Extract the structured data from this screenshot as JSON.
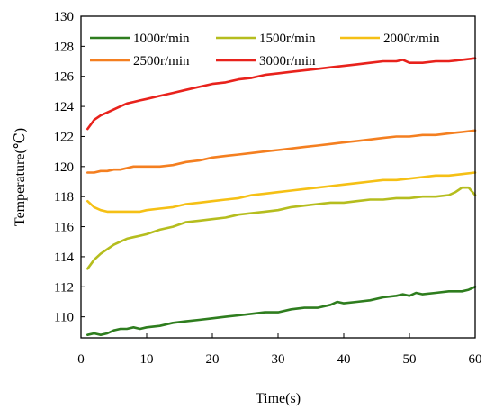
{
  "chart_data": {
    "type": "line",
    "xlabel": "Time(s)",
    "ylabel": "Temperature(℃)",
    "xlim": [
      0,
      60
    ],
    "ylim": [
      108.6,
      130
    ],
    "xticks": [
      0,
      10,
      20,
      30,
      40,
      50,
      60
    ],
    "yticks": [
      110,
      112,
      114,
      116,
      118,
      120,
      122,
      124,
      126,
      128,
      130
    ],
    "grid": false,
    "legend_position": "top, inside plot area (two rows)",
    "series": [
      {
        "name": "1000r/min",
        "color": "#2e7d1e",
        "x": [
          1,
          2,
          3,
          4,
          5,
          6,
          7,
          8,
          9,
          10,
          12,
          14,
          16,
          18,
          20,
          22,
          24,
          26,
          28,
          30,
          32,
          34,
          36,
          38,
          39,
          40,
          42,
          44,
          46,
          48,
          49,
          50,
          51,
          52,
          54,
          56,
          58,
          59,
          60
        ],
        "y": [
          108.8,
          108.9,
          108.8,
          108.9,
          109.1,
          109.2,
          109.2,
          109.3,
          109.2,
          109.3,
          109.4,
          109.6,
          109.7,
          109.8,
          109.9,
          110.0,
          110.1,
          110.2,
          110.3,
          110.3,
          110.5,
          110.6,
          110.6,
          110.8,
          111.0,
          110.9,
          111.0,
          111.1,
          111.3,
          111.4,
          111.5,
          111.4,
          111.6,
          111.5,
          111.6,
          111.7,
          111.7,
          111.8,
          112.0
        ]
      },
      {
        "name": "1500r/min",
        "color": "#b5bd1e",
        "x": [
          1,
          2,
          3,
          4,
          5,
          6,
          7,
          8,
          9,
          10,
          12,
          14,
          16,
          18,
          20,
          22,
          24,
          26,
          28,
          30,
          32,
          34,
          36,
          38,
          40,
          42,
          44,
          46,
          48,
          50,
          52,
          54,
          56,
          57,
          58,
          59,
          60
        ],
        "y": [
          113.2,
          113.8,
          114.2,
          114.5,
          114.8,
          115.0,
          115.2,
          115.3,
          115.4,
          115.5,
          115.8,
          116.0,
          116.3,
          116.4,
          116.5,
          116.6,
          116.8,
          116.9,
          117.0,
          117.1,
          117.3,
          117.4,
          117.5,
          117.6,
          117.6,
          117.7,
          117.8,
          117.8,
          117.9,
          117.9,
          118.0,
          118.0,
          118.1,
          118.3,
          118.6,
          118.6,
          118.1
        ]
      },
      {
        "name": "2000r/min",
        "color": "#f5c015",
        "x": [
          1,
          2,
          3,
          4,
          5,
          6,
          7,
          8,
          9,
          10,
          12,
          14,
          16,
          18,
          20,
          22,
          24,
          26,
          28,
          30,
          32,
          34,
          36,
          38,
          40,
          42,
          44,
          46,
          48,
          50,
          52,
          54,
          56,
          58,
          60
        ],
        "y": [
          117.7,
          117.3,
          117.1,
          117.0,
          117.0,
          117.0,
          117.0,
          117.0,
          117.0,
          117.1,
          117.2,
          117.3,
          117.5,
          117.6,
          117.7,
          117.8,
          117.9,
          118.1,
          118.2,
          118.3,
          118.4,
          118.5,
          118.6,
          118.7,
          118.8,
          118.9,
          119.0,
          119.1,
          119.1,
          119.2,
          119.3,
          119.4,
          119.4,
          119.5,
          119.6
        ]
      },
      {
        "name": "2500r/min",
        "color": "#f47f20",
        "x": [
          1,
          2,
          3,
          4,
          5,
          6,
          7,
          8,
          9,
          10,
          12,
          14,
          16,
          18,
          20,
          22,
          24,
          26,
          28,
          30,
          32,
          34,
          36,
          38,
          40,
          42,
          44,
          46,
          48,
          50,
          52,
          54,
          56,
          58,
          60
        ],
        "y": [
          119.6,
          119.6,
          119.7,
          119.7,
          119.8,
          119.8,
          119.9,
          120.0,
          120.0,
          120.0,
          120.0,
          120.1,
          120.3,
          120.4,
          120.6,
          120.7,
          120.8,
          120.9,
          121.0,
          121.1,
          121.2,
          121.3,
          121.4,
          121.5,
          121.6,
          121.7,
          121.8,
          121.9,
          122.0,
          122.0,
          122.1,
          122.1,
          122.2,
          122.3,
          122.4
        ]
      },
      {
        "name": "3000r/min",
        "color": "#e8221c",
        "x": [
          1,
          2,
          3,
          4,
          5,
          6,
          7,
          8,
          9,
          10,
          12,
          14,
          16,
          18,
          20,
          22,
          24,
          26,
          28,
          30,
          32,
          34,
          36,
          38,
          40,
          42,
          44,
          46,
          48,
          49,
          50,
          51,
          52,
          54,
          56,
          58,
          60
        ],
        "y": [
          122.5,
          123.1,
          123.4,
          123.6,
          123.8,
          124.0,
          124.2,
          124.3,
          124.4,
          124.5,
          124.7,
          124.9,
          125.1,
          125.3,
          125.5,
          125.6,
          125.8,
          125.9,
          126.1,
          126.2,
          126.3,
          126.4,
          126.5,
          126.6,
          126.7,
          126.8,
          126.9,
          127.0,
          127.0,
          127.1,
          126.9,
          126.9,
          126.9,
          127.0,
          127.0,
          127.1,
          127.2
        ]
      }
    ]
  }
}
